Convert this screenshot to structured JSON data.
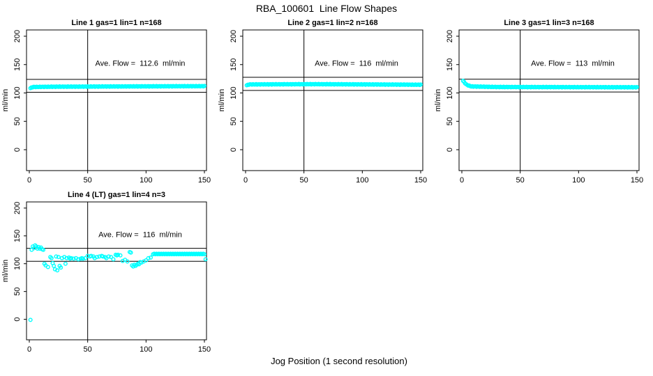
{
  "page": {
    "title": "RBA_100601  Line Flow Shapes",
    "xlabel": "Jog Position (1 second resolution)",
    "background": "#ffffff",
    "axis_color": "#000000"
  },
  "chart_data": [
    {
      "type": "scatter",
      "title": "Line 1 gas=1 lin=1 n=168",
      "annotation": "Ave. Flow =  112.6  ml/min",
      "avg_flow_ml_min": 112.6,
      "n_points": 168,
      "ylabel": "ml/min",
      "x_ticks": [
        0,
        50,
        100,
        150
      ],
      "y_ticks": [
        0,
        50,
        100,
        150,
        200
      ],
      "axis_range": {
        "x": [
          0,
          150
        ],
        "y": [
          0,
          200
        ]
      },
      "vline_x": 50,
      "hlines": [
        123.9,
        101.3
      ],
      "grid": false,
      "legend": false,
      "marker_color": "#00ffff",
      "series": {
        "kind": "band_anchors",
        "x_start": 1,
        "x_end": 150,
        "anchors": [
          [
            1,
            108.5
          ],
          [
            3,
            110.5
          ],
          [
            20,
            111
          ],
          [
            80,
            111.5
          ],
          [
            150,
            112
          ]
        ]
      }
    },
    {
      "type": "scatter",
      "title": "Line 2 gas=1 lin=2 n=168",
      "annotation": "Ave. Flow =  116  ml/min",
      "avg_flow_ml_min": 116,
      "n_points": 168,
      "ylabel": "ml/min",
      "x_ticks": [
        0,
        50,
        100,
        150
      ],
      "y_ticks": [
        0,
        50,
        100,
        150,
        200
      ],
      "axis_range": {
        "x": [
          0,
          150
        ],
        "y": [
          0,
          200
        ]
      },
      "vline_x": 50,
      "hlines": [
        127.6,
        104.4
      ],
      "grid": false,
      "legend": false,
      "marker_color": "#00ffff",
      "series": {
        "kind": "band_anchors",
        "x_start": 1,
        "x_end": 150,
        "anchors": [
          [
            1,
            113.5
          ],
          [
            3,
            115
          ],
          [
            60,
            115.5
          ],
          [
            150,
            114.5
          ]
        ]
      }
    },
    {
      "type": "scatter",
      "title": "Line 3 gas=1 lin=3 n=168",
      "annotation": "Ave. Flow =  113  ml/min",
      "avg_flow_ml_min": 113,
      "n_points": 168,
      "ylabel": "ml/min",
      "x_ticks": [
        0,
        50,
        100,
        150
      ],
      "y_ticks": [
        0,
        50,
        100,
        150,
        200
      ],
      "axis_range": {
        "x": [
          0,
          150
        ],
        "y": [
          0,
          200
        ]
      },
      "vline_x": 50,
      "hlines": [
        124.3,
        101.7
      ],
      "grid": false,
      "legend": false,
      "marker_color": "#00ffff",
      "series": {
        "kind": "band_anchors",
        "x_start": 1,
        "x_end": 150,
        "anchors": [
          [
            1,
            121.5
          ],
          [
            2,
            119
          ],
          [
            4,
            114.5
          ],
          [
            8,
            111.5
          ],
          [
            30,
            110.5
          ],
          [
            150,
            110
          ]
        ]
      }
    },
    {
      "type": "scatter",
      "title": "Line 4 (LT) gas=1 lin=4 n=3",
      "annotation": "Ave. Flow =  116  ml/min",
      "avg_flow_ml_min": 116,
      "n_points": 3,
      "ylabel": "ml/min",
      "x_ticks": [
        0,
        50,
        100,
        150
      ],
      "y_ticks": [
        0,
        50,
        100,
        150,
        200
      ],
      "axis_range": {
        "x": [
          0,
          150
        ],
        "y": [
          0,
          200
        ]
      },
      "vline_x": 50,
      "hlines": [
        127.6,
        104.4
      ],
      "grid": false,
      "legend": false,
      "marker_color": "#00ffff",
      "series": {
        "kind": "points",
        "points": [
          [
            1,
            -1
          ],
          [
            2,
            125
          ],
          [
            3,
            131
          ],
          [
            4,
            128
          ],
          [
            5,
            133
          ],
          [
            6,
            131
          ],
          [
            7,
            127
          ],
          [
            8,
            130
          ],
          [
            9,
            127
          ],
          [
            10,
            129
          ],
          [
            11,
            126
          ],
          [
            12,
            125
          ],
          [
            13,
            100
          ],
          [
            14,
            97
          ],
          [
            16,
            94
          ],
          [
            18,
            112
          ],
          [
            19,
            110
          ],
          [
            20,
            101
          ],
          [
            21,
            96
          ],
          [
            22,
            90
          ],
          [
            23,
            113
          ],
          [
            24,
            88
          ],
          [
            25,
            112
          ],
          [
            26,
            96
          ],
          [
            27,
            93
          ],
          [
            28,
            110
          ],
          [
            30,
            112
          ],
          [
            31,
            100
          ],
          [
            32,
            110
          ],
          [
            34,
            111
          ],
          [
            35,
            109
          ],
          [
            36,
            110
          ],
          [
            38,
            109
          ],
          [
            40,
            110
          ],
          [
            42,
            108
          ],
          [
            44,
            109
          ],
          [
            45,
            110
          ],
          [
            46,
            109
          ],
          [
            48,
            110
          ],
          [
            50,
            114
          ],
          [
            52,
            113
          ],
          [
            53,
            114
          ],
          [
            55,
            113
          ],
          [
            56,
            110
          ],
          [
            58,
            112
          ],
          [
            60,
            113
          ],
          [
            62,
            114
          ],
          [
            63,
            113
          ],
          [
            65,
            112
          ],
          [
            66,
            110
          ],
          [
            68,
            113
          ],
          [
            70,
            112
          ],
          [
            72,
            108
          ],
          [
            74,
            116
          ],
          [
            75,
            115
          ],
          [
            76,
            116
          ],
          [
            78,
            115
          ],
          [
            80,
            105
          ],
          [
            82,
            107
          ],
          [
            84,
            104
          ],
          [
            86,
            121
          ],
          [
            87,
            120
          ],
          [
            88,
            97
          ],
          [
            89,
            95
          ],
          [
            90,
            98
          ],
          [
            91,
            96
          ],
          [
            92,
            98
          ],
          [
            93,
            100
          ],
          [
            94,
            99
          ],
          [
            95,
            103
          ],
          [
            96,
            102
          ],
          [
            98,
            104
          ],
          [
            100,
            106
          ],
          [
            102,
            110
          ],
          [
            104,
            111
          ],
          [
            106,
            117
          ],
          [
            107,
            118
          ],
          [
            108,
            117
          ],
          [
            109,
            118
          ],
          [
            110,
            117
          ],
          [
            111,
            118
          ],
          [
            112,
            117
          ],
          [
            113,
            118
          ],
          [
            114,
            117
          ],
          [
            115,
            118
          ],
          [
            116,
            117
          ],
          [
            117,
            118
          ],
          [
            118,
            117
          ],
          [
            119,
            118
          ],
          [
            120,
            117
          ],
          [
            121,
            118
          ],
          [
            122,
            117
          ],
          [
            123,
            118
          ],
          [
            124,
            117
          ],
          [
            125,
            118
          ],
          [
            126,
            117
          ],
          [
            127,
            118
          ],
          [
            128,
            117
          ],
          [
            129,
            118
          ],
          [
            130,
            117
          ],
          [
            131,
            118
          ],
          [
            132,
            117
          ],
          [
            133,
            118
          ],
          [
            134,
            117
          ],
          [
            135,
            118
          ],
          [
            136,
            117
          ],
          [
            137,
            118
          ],
          [
            138,
            117
          ],
          [
            139,
            118
          ],
          [
            140,
            117
          ],
          [
            141,
            118
          ],
          [
            142,
            117
          ],
          [
            143,
            118
          ],
          [
            144,
            117
          ],
          [
            145,
            118
          ],
          [
            146,
            117
          ],
          [
            147,
            118
          ],
          [
            148,
            117
          ],
          [
            149,
            118
          ],
          [
            150,
            117
          ],
          [
            151,
            108
          ]
        ]
      }
    }
  ]
}
